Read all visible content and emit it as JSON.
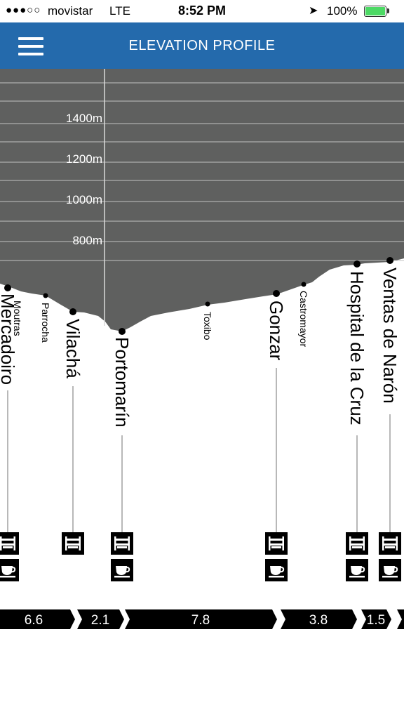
{
  "status_bar": {
    "signal": "●●●○○",
    "carrier": "movistar",
    "network": "LTE",
    "time": "8:52 PM",
    "battery": "100%",
    "location_icon": "location-arrow-icon",
    "battery_icon": "battery-full-icon"
  },
  "header": {
    "menu_icon": "hamburger-menu-icon",
    "title": "ELEVATION PROFILE"
  },
  "colors": {
    "header_bg": "#246aac",
    "profile_bg": "#5f605f",
    "grid": "#bfbfbf",
    "marker": "#000000"
  },
  "profile": {
    "y_ticks": [
      "1400m",
      "1200m",
      "1000m",
      "800m"
    ],
    "towns": [
      {
        "name": "Mercadoiro",
        "major": true,
        "services": [
          "albergue",
          "cafe"
        ]
      },
      {
        "name": "Moutras",
        "major": false
      },
      {
        "name": "Parrocha",
        "major": false
      },
      {
        "name": "Vilachá",
        "major": true,
        "services": [
          "albergue"
        ]
      },
      {
        "name": "Portomarín",
        "major": true,
        "services": [
          "albergue",
          "cafe"
        ]
      },
      {
        "name": "Toxibo",
        "major": false
      },
      {
        "name": "Gonzar",
        "major": true,
        "services": [
          "albergue",
          "cafe"
        ]
      },
      {
        "name": "Castromayor",
        "major": false
      },
      {
        "name": "Hospital de la Cruz",
        "major": true,
        "services": [
          "albergue",
          "cafe"
        ]
      },
      {
        "name": "Ventas de Narón",
        "major": true,
        "services": [
          "albergue",
          "cafe"
        ]
      }
    ],
    "distances": [
      "6.6",
      "2.1",
      "7.8",
      "3.8",
      "1.5"
    ]
  }
}
